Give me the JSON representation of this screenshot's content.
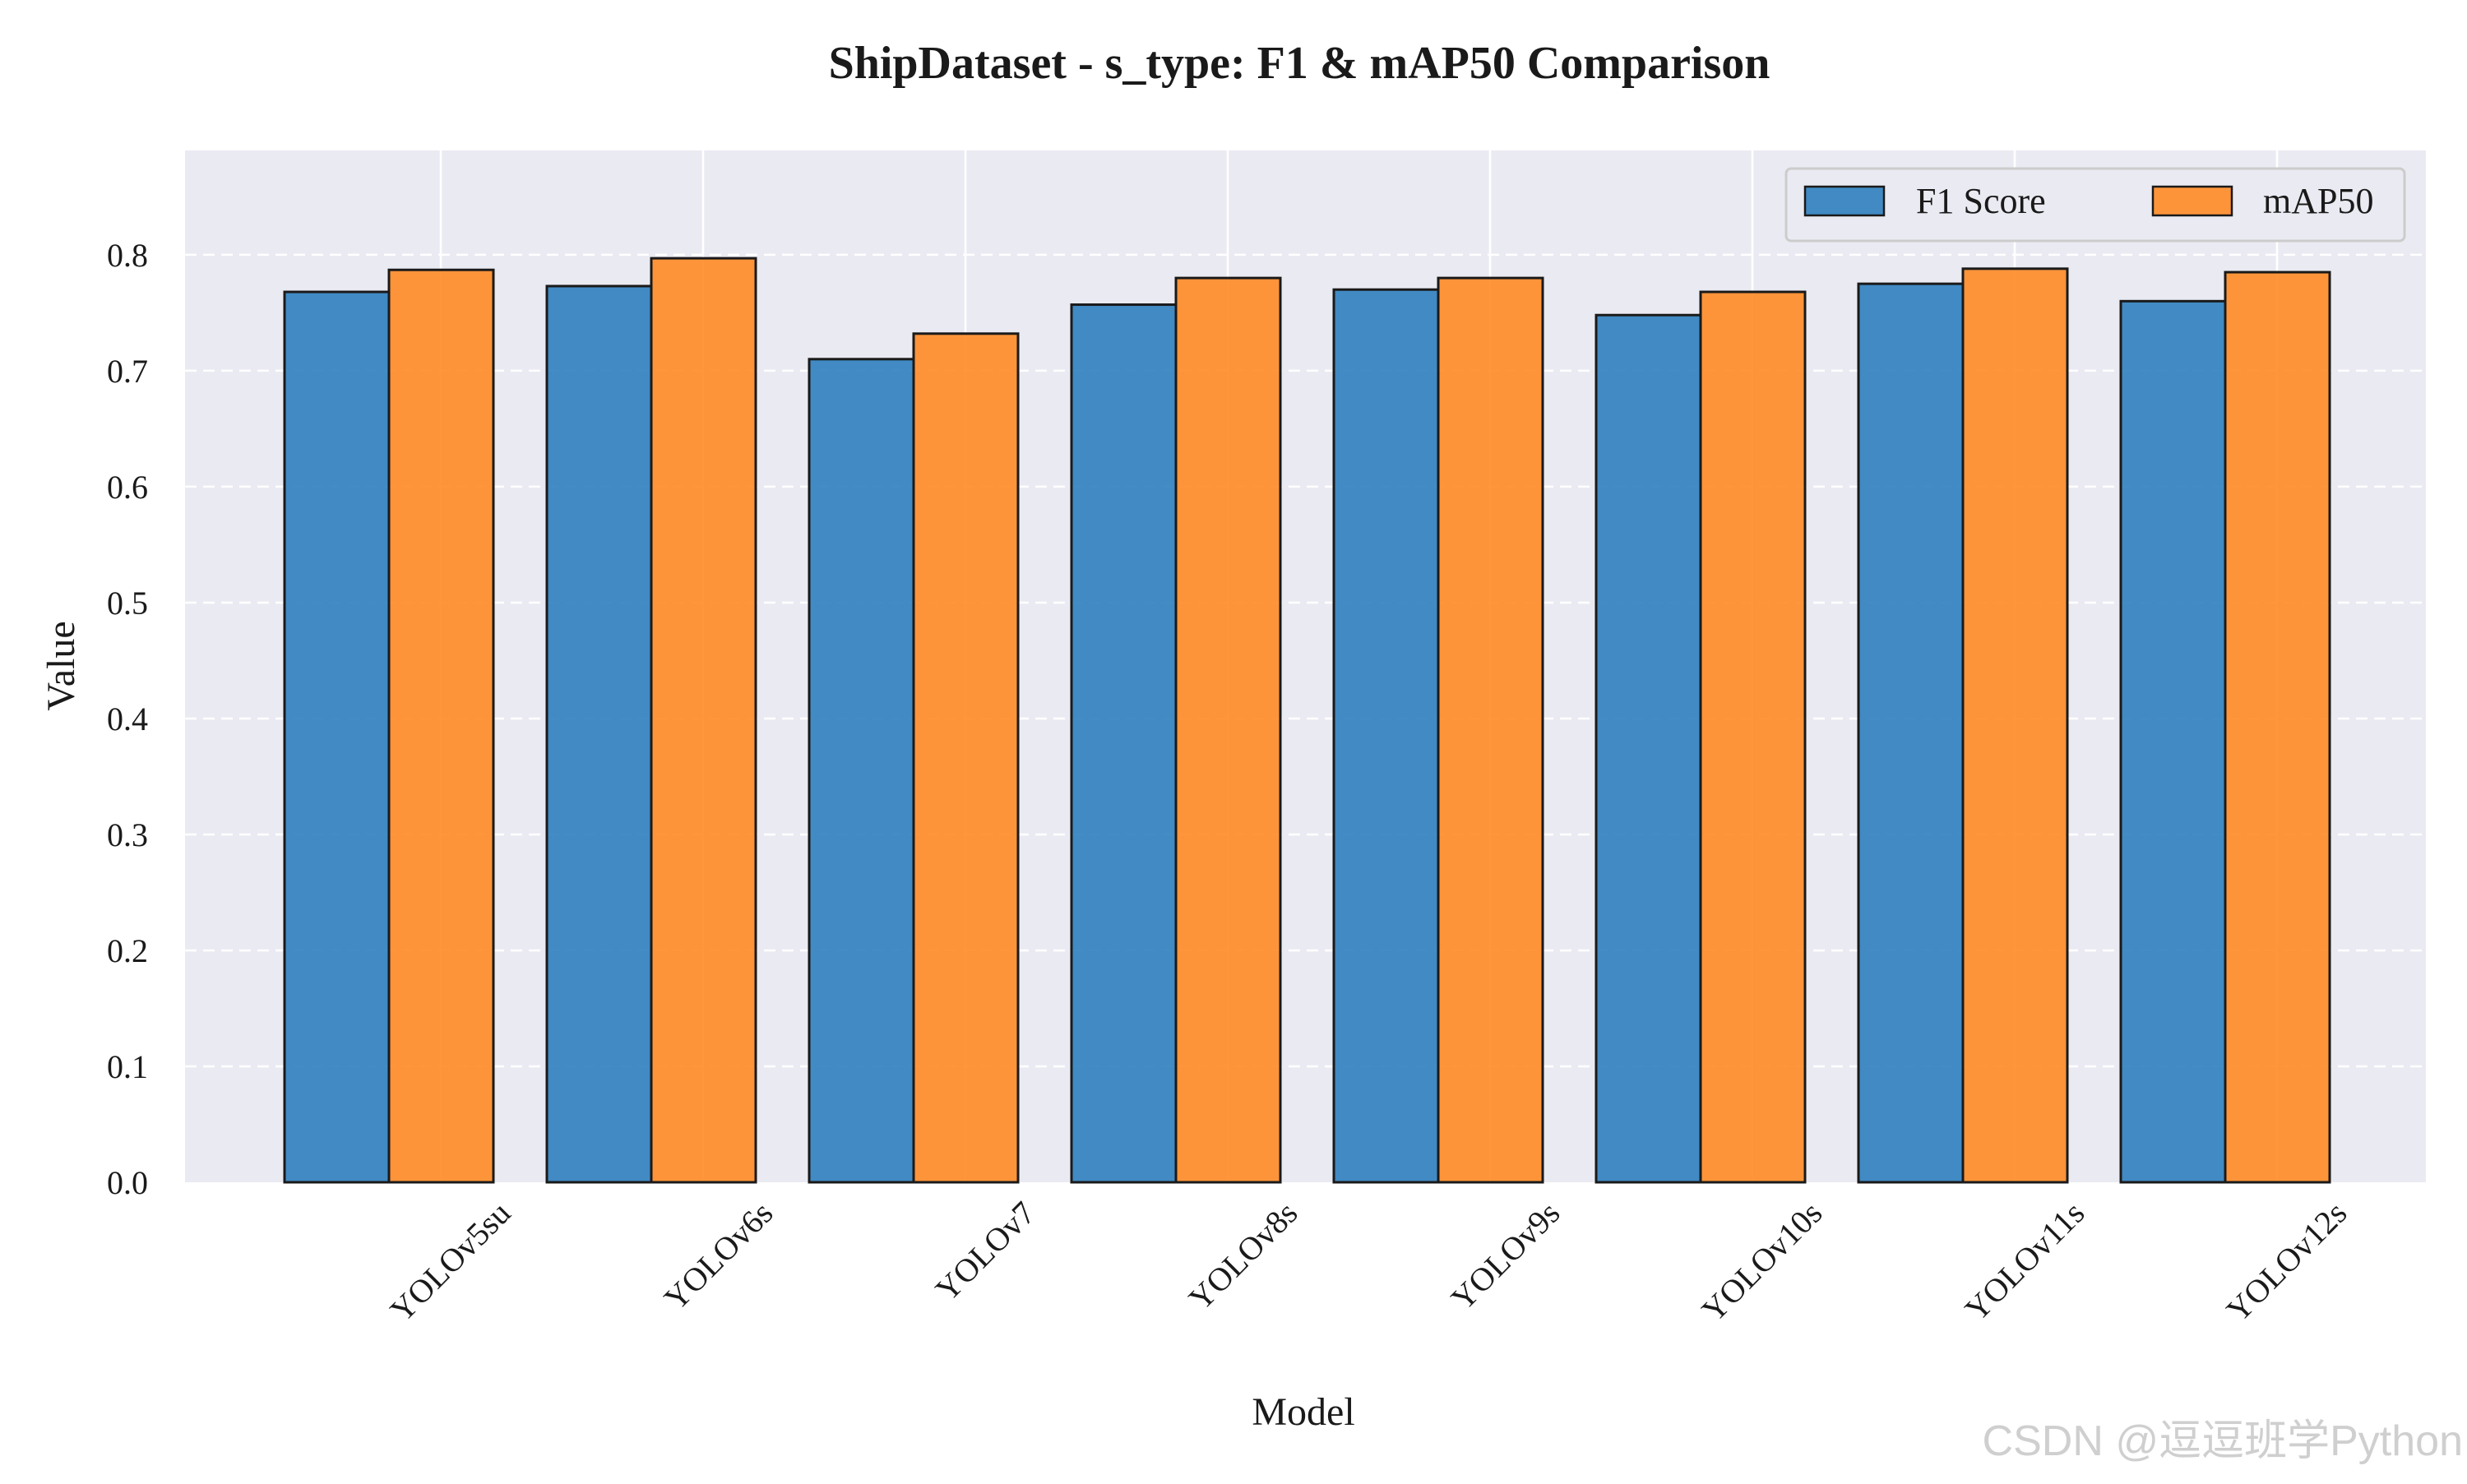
{
  "colors": {
    "background": "#ffffff",
    "plot_background": "#eaeaf2",
    "grid": "#ffffff",
    "f1": "#2f7fbf",
    "map50": "#ff8b26",
    "bar_edge": "#1a1a1a"
  },
  "watermark": "CSDN @逗逗班学Python",
  "chart_data": {
    "type": "bar",
    "title": "ShipDataset - s_type: F1 & mAP50 Comparison",
    "xlabel": "Model",
    "ylabel": "Value",
    "ylim": [
      0,
      0.89
    ],
    "yticks": [
      "0.0",
      "0.1",
      "0.2",
      "0.3",
      "0.4",
      "0.5",
      "0.6",
      "0.7",
      "0.8"
    ],
    "categories": [
      "YOLOv5su",
      "YOLOv6s",
      "YOLOv7",
      "YOLOv8s",
      "YOLOv9s",
      "YOLOv10s",
      "YOLOv11s",
      "YOLOv12s"
    ],
    "series": [
      {
        "name": "F1 Score",
        "color_key": "f1",
        "values": [
          0.768,
          0.773,
          0.71,
          0.757,
          0.77,
          0.748,
          0.775,
          0.76
        ]
      },
      {
        "name": "mAP50",
        "color_key": "map50",
        "values": [
          0.787,
          0.797,
          0.732,
          0.78,
          0.78,
          0.768,
          0.788,
          0.785
        ]
      }
    ],
    "grid": true,
    "legend_position": "top-right"
  }
}
